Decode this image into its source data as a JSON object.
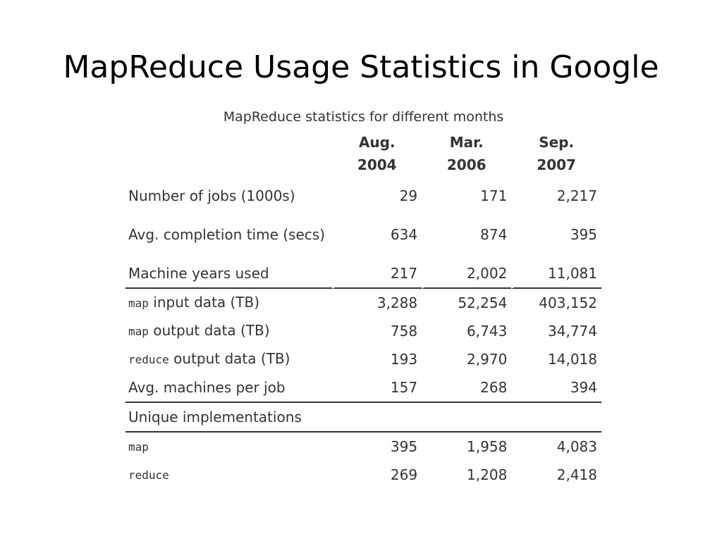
{
  "slide": {
    "title": "MapReduce Usage Statistics in Google"
  },
  "table": {
    "caption": "MapReduce statistics for different months",
    "columns": [
      {
        "line1": "Aug.",
        "line2": "2004"
      },
      {
        "line1": "Mar.",
        "line2": "2006"
      },
      {
        "line1": "Sep.",
        "line2": "2007"
      }
    ],
    "rows": [
      {
        "label": "Number of jobs (1000s)",
        "values": [
          "29",
          "171",
          "2,217"
        ]
      },
      {
        "label": "Avg. completion time (secs)",
        "values": [
          "634",
          "874",
          "395"
        ]
      },
      {
        "label": "Machine years used",
        "values": [
          "217",
          "2,002",
          "11,081"
        ]
      },
      {
        "code": "map",
        "label": " input data (TB)",
        "values": [
          "3,288",
          "52,254",
          "403,152"
        ]
      },
      {
        "code": "map",
        "label": " output data (TB)",
        "values": [
          "758",
          "6,743",
          "34,774"
        ]
      },
      {
        "code": "reduce",
        "label": " output data (TB)",
        "values": [
          "193",
          "2,970",
          "14,018"
        ]
      },
      {
        "label": "Avg. machines per job",
        "values": [
          "157",
          "268",
          "394"
        ]
      }
    ],
    "section": {
      "label": "Unique implementations",
      "rows": [
        {
          "code": "map",
          "values": [
            "395",
            "1,958",
            "4,083"
          ]
        },
        {
          "code": "reduce",
          "values": [
            "269",
            "1,208",
            "2,418"
          ]
        }
      ]
    }
  }
}
